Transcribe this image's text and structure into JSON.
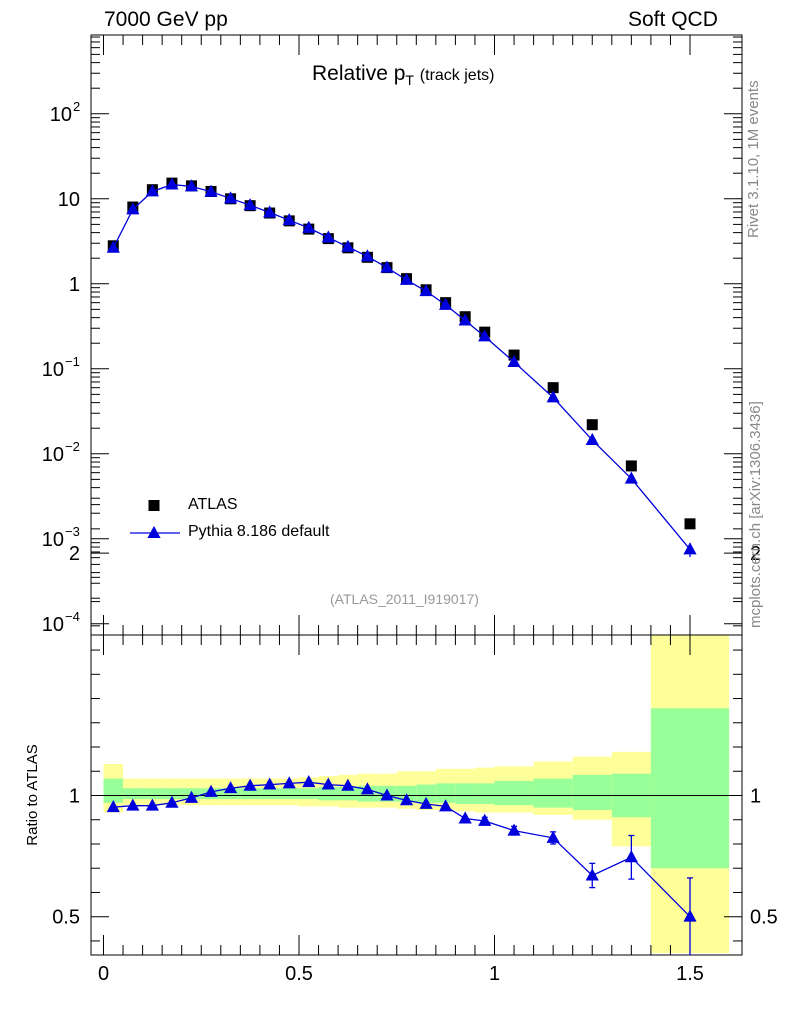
{
  "header": {
    "left": "7000 GeV pp",
    "right": "Soft QCD",
    "side_top": "Rivet 3.1.10,  1M events",
    "side_bottom": "mcplots.cern.ch [arXiv:1306.3436]"
  },
  "chart_data": [
    {
      "type": "scatter",
      "title_main": "Relative p",
      "title_sub": "T",
      "title_note": "(track jets)",
      "annotation": "(ATLAS_2011_I919017)",
      "xlabel": "",
      "ylabel": "",
      "xlim": [
        -0.03,
        1.6
      ],
      "ylim": [
        0.0001,
        1000
      ],
      "yscale": "log",
      "legend_position": "bottom-left",
      "yticks": [
        {
          "value": 0.0001,
          "base": "10",
          "exp": "−4"
        },
        {
          "value": 0.001,
          "base": "10",
          "exp": "−3"
        },
        {
          "value": 0.01,
          "base": "10",
          "exp": "−2"
        },
        {
          "value": 0.1,
          "base": "10",
          "exp": "−1"
        },
        {
          "value": 1,
          "base": "1",
          "exp": ""
        },
        {
          "value": 10,
          "base": "10",
          "exp": ""
        },
        {
          "value": 100,
          "base": "10",
          "exp": "2"
        }
      ],
      "series": [
        {
          "name": "ATLAS",
          "color": "#000000",
          "marker": "square",
          "x": [
            0.025,
            0.075,
            0.125,
            0.175,
            0.225,
            0.275,
            0.325,
            0.375,
            0.425,
            0.475,
            0.525,
            0.575,
            0.625,
            0.675,
            0.725,
            0.775,
            0.825,
            0.875,
            0.925,
            0.975,
            1.05,
            1.15,
            1.25,
            1.35,
            1.5
          ],
          "y": [
            2.8,
            8.0,
            12.8,
            15.3,
            14.2,
            12.2,
            10.0,
            8.3,
            6.8,
            5.5,
            4.4,
            3.4,
            2.65,
            2.05,
            1.55,
            1.15,
            0.85,
            0.6,
            0.41,
            0.27,
            0.145,
            0.06,
            0.022,
            0.0072,
            0.0015
          ]
        },
        {
          "name": "Pythia 8.186 default",
          "color": "#0000dd",
          "marker": "triangle",
          "x": [
            0.025,
            0.075,
            0.125,
            0.175,
            0.225,
            0.275,
            0.325,
            0.375,
            0.425,
            0.475,
            0.525,
            0.575,
            0.625,
            0.675,
            0.725,
            0.775,
            0.825,
            0.875,
            0.925,
            0.975,
            1.05,
            1.15,
            1.25,
            1.35,
            1.5
          ],
          "y": [
            2.65,
            7.5,
            12.2,
            14.7,
            14.0,
            12.1,
            10.1,
            8.4,
            6.9,
            5.6,
            4.55,
            3.5,
            2.72,
            2.1,
            1.55,
            1.11,
            0.82,
            0.565,
            0.37,
            0.24,
            0.12,
            0.046,
            0.0145,
            0.0051,
            0.00075
          ],
          "yerr": [
            0,
            0,
            0,
            0,
            0,
            0,
            0,
            0,
            0,
            0,
            0,
            0,
            0,
            0,
            0,
            0,
            0,
            0,
            0,
            0,
            0,
            0,
            0,
            0,
            0.00014
          ]
        }
      ]
    },
    {
      "type": "scatter",
      "ylabel": "Ratio to ATLAS",
      "xlim": [
        -0.03,
        1.6
      ],
      "ylim": [
        0.34,
        2.3
      ],
      "xticks": [
        {
          "value": 0,
          "label": "0"
        },
        {
          "value": 0.5,
          "label": "0.5"
        },
        {
          "value": 1,
          "label": "1"
        },
        {
          "value": 1.5,
          "label": "1.5"
        }
      ],
      "yticks": [
        {
          "value": 0.5,
          "label": "0.5"
        },
        {
          "value": 1,
          "label": "1"
        },
        {
          "value": 2,
          "label": "2"
        }
      ],
      "reference_line": 1,
      "bands": {
        "bin_edges": [
          0,
          0.05,
          0.1,
          0.15,
          0.2,
          0.25,
          0.3,
          0.35,
          0.4,
          0.45,
          0.5,
          0.55,
          0.6,
          0.65,
          0.7,
          0.75,
          0.8,
          0.85,
          0.9,
          0.95,
          1.0,
          1.1,
          1.2,
          1.3,
          1.4,
          1.6
        ],
        "outer_lo": [
          0.93,
          0.96,
          0.96,
          0.96,
          0.96,
          0.96,
          0.96,
          0.96,
          0.96,
          0.96,
          0.955,
          0.955,
          0.95,
          0.95,
          0.95,
          0.945,
          0.94,
          0.94,
          0.935,
          0.93,
          0.93,
          0.92,
          0.9,
          0.79,
          0.35
        ],
        "outer_hi": [
          1.13,
          1.07,
          1.07,
          1.07,
          1.07,
          1.07,
          1.07,
          1.07,
          1.07,
          1.07,
          1.075,
          1.08,
          1.085,
          1.09,
          1.09,
          1.1,
          1.1,
          1.11,
          1.11,
          1.115,
          1.12,
          1.14,
          1.16,
          1.18,
          1.66
        ],
        "inner_lo": [
          0.97,
          0.985,
          0.985,
          0.985,
          0.985,
          0.985,
          0.985,
          0.985,
          0.985,
          0.985,
          0.985,
          0.98,
          0.98,
          0.975,
          0.975,
          0.975,
          0.97,
          0.97,
          0.965,
          0.965,
          0.96,
          0.95,
          0.94,
          0.91,
          0.7
        ],
        "inner_hi": [
          1.07,
          1.03,
          1.03,
          1.03,
          1.03,
          1.03,
          1.03,
          1.03,
          1.03,
          1.03,
          1.03,
          1.035,
          1.035,
          1.04,
          1.04,
          1.04,
          1.045,
          1.05,
          1.05,
          1.05,
          1.06,
          1.07,
          1.085,
          1.09,
          1.36
        ],
        "outer_color": "#ffff99",
        "inner_color": "#99ff99"
      },
      "series": [
        {
          "name": "Pythia 8.186 default",
          "color": "#0000dd",
          "marker": "triangle",
          "x": [
            0.025,
            0.075,
            0.125,
            0.175,
            0.225,
            0.275,
            0.325,
            0.375,
            0.425,
            0.475,
            0.525,
            0.575,
            0.625,
            0.675,
            0.725,
            0.775,
            0.825,
            0.875,
            0.925,
            0.975,
            1.05,
            1.15,
            1.25,
            1.35,
            1.5
          ],
          "y": [
            0.952,
            0.958,
            0.958,
            0.97,
            0.99,
            1.015,
            1.03,
            1.04,
            1.045,
            1.05,
            1.055,
            1.045,
            1.04,
            1.025,
            1.0,
            0.98,
            0.965,
            0.955,
            0.905,
            0.895,
            0.855,
            0.825,
            0.67,
            0.745,
            0.5
          ],
          "yerr": [
            0,
            0,
            0,
            0,
            0,
            0,
            0,
            0,
            0,
            0,
            0,
            0,
            0,
            0,
            0,
            0,
            0,
            0,
            0,
            0.015,
            0.018,
            0.025,
            0.05,
            0.09,
            0.16
          ]
        }
      ]
    }
  ]
}
